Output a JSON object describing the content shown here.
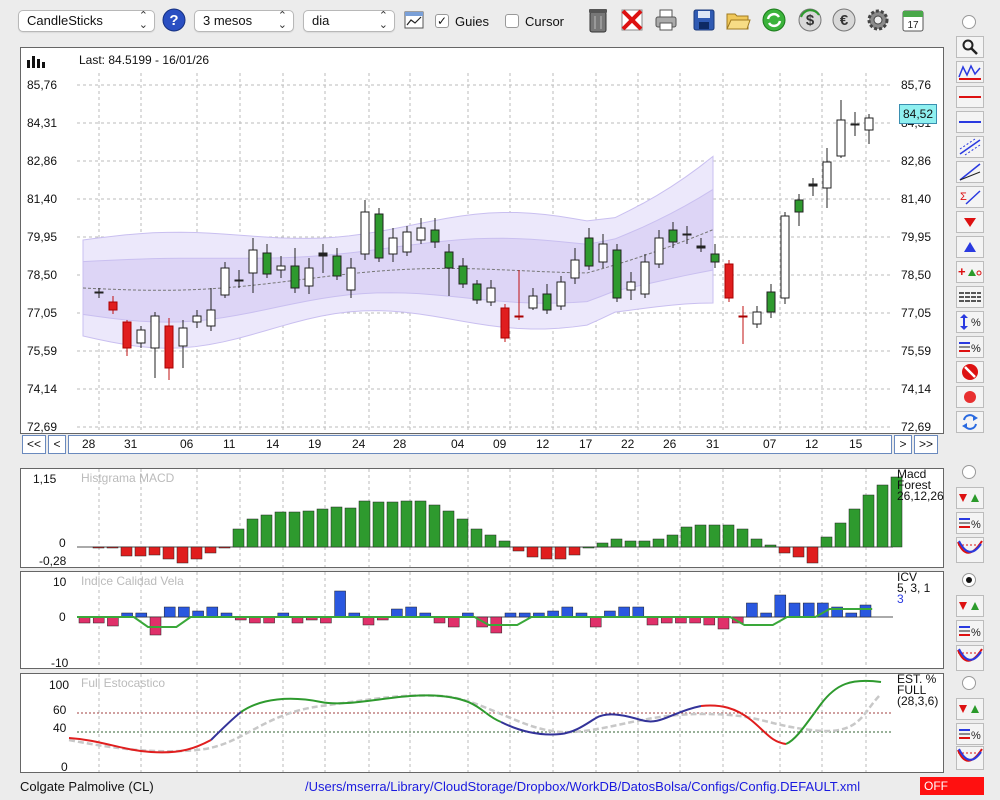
{
  "toolbar": {
    "chart_type": "CandleSticks",
    "period": "3 mesos",
    "interval": "dia",
    "guies_label": "Guies",
    "guies_checked": true,
    "cursor_label": "Cursor",
    "cursor_checked": false,
    "calendar_day": "17"
  },
  "main_chart": {
    "last_info": "Last: 84.5199 - 16/01/26",
    "price_tag": "84,52",
    "y_ticks": [
      "85,76",
      "84,31",
      "82,86",
      "81,40",
      "79,95",
      "78,50",
      "77,05",
      "75,59",
      "74,14",
      "72,69"
    ],
    "x_ticks": [
      "28",
      "31",
      "06",
      "11",
      "14",
      "19",
      "24",
      "28",
      "04",
      "09",
      "12",
      "17",
      "22",
      "26",
      "31",
      "07",
      "12",
      "15"
    ],
    "nav": {
      "first": "<<",
      "prev": "<",
      "next": ">",
      "last": ">>"
    }
  },
  "macd": {
    "title": "Histgrama MACD",
    "y_ticks": [
      "1,15",
      "0",
      "-0,28"
    ],
    "legend": [
      "Macd",
      "Forest",
      "26,12,26"
    ]
  },
  "icv": {
    "title": "Indice Calidad Vela",
    "y_ticks": [
      "10",
      "0",
      "-10"
    ],
    "legend": [
      "ICV",
      "5, 3, 1",
      "3"
    ]
  },
  "stoch": {
    "title": "Full Estocastico",
    "y_ticks": [
      "100",
      "60",
      "40",
      "0"
    ],
    "legend": [
      "EST. %",
      "FULL",
      "(28,3,6)"
    ]
  },
  "status": {
    "company": "Colgate Palmolive (CL)",
    "config_path": "/Users/mserra/Library/CloudStorage/Dropbox/WorkDB/DatosBolsa/Configs/Config.DEFAULT.xml",
    "off_label": "OFF"
  },
  "colors": {
    "up": "#2e9a2e",
    "down": "#e01e1e",
    "band": "#cfc6f3",
    "accent_price": "#8ff0f0",
    "link": "#1a1adf"
  }
}
